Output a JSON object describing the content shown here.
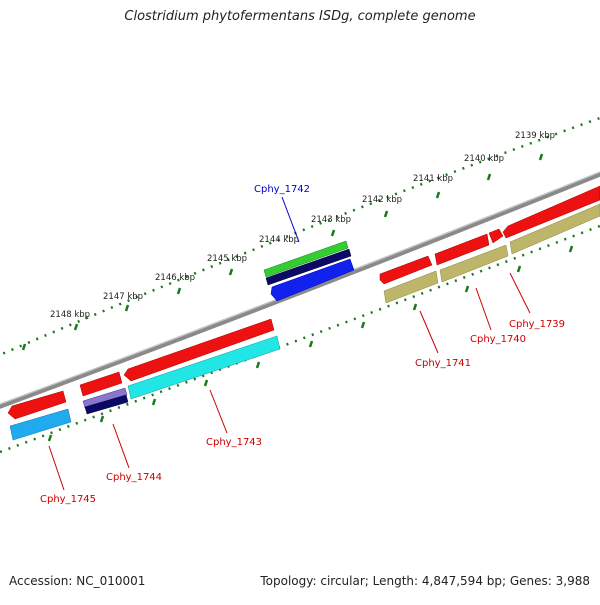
{
  "title": "Clostridium phytofermentans ISDg, complete genome",
  "footer": {
    "accession": "Accession: NC_010001",
    "summary": "Topology: circular; Length: 4,847,594 bp; Genes: 3,988"
  },
  "colors": {
    "backbone": "#8a8a8a",
    "tick": "#1a7a1a",
    "label_red": "#cc0000",
    "label_blue": "#0000cc"
  },
  "scale_labels": [
    "2139 kbp",
    "2140 kbp",
    "2141 kbp",
    "2142 kbp",
    "2143 kbp",
    "2144 kbp",
    "2145 kbp",
    "2146 kbp",
    "2147 kbp",
    "2148 kbp"
  ],
  "genes": [
    {
      "name": "Cphy_1739",
      "label_color": "#cc0000"
    },
    {
      "name": "Cphy_1740",
      "label_color": "#cc0000"
    },
    {
      "name": "Cphy_1741",
      "label_color": "#cc0000"
    },
    {
      "name": "Cphy_1742",
      "label_color": "#0000cc"
    },
    {
      "name": "Cphy_1743",
      "label_color": "#cc0000"
    },
    {
      "name": "Cphy_1744",
      "label_color": "#cc0000"
    },
    {
      "name": "Cphy_1745",
      "label_color": "#cc0000"
    }
  ]
}
